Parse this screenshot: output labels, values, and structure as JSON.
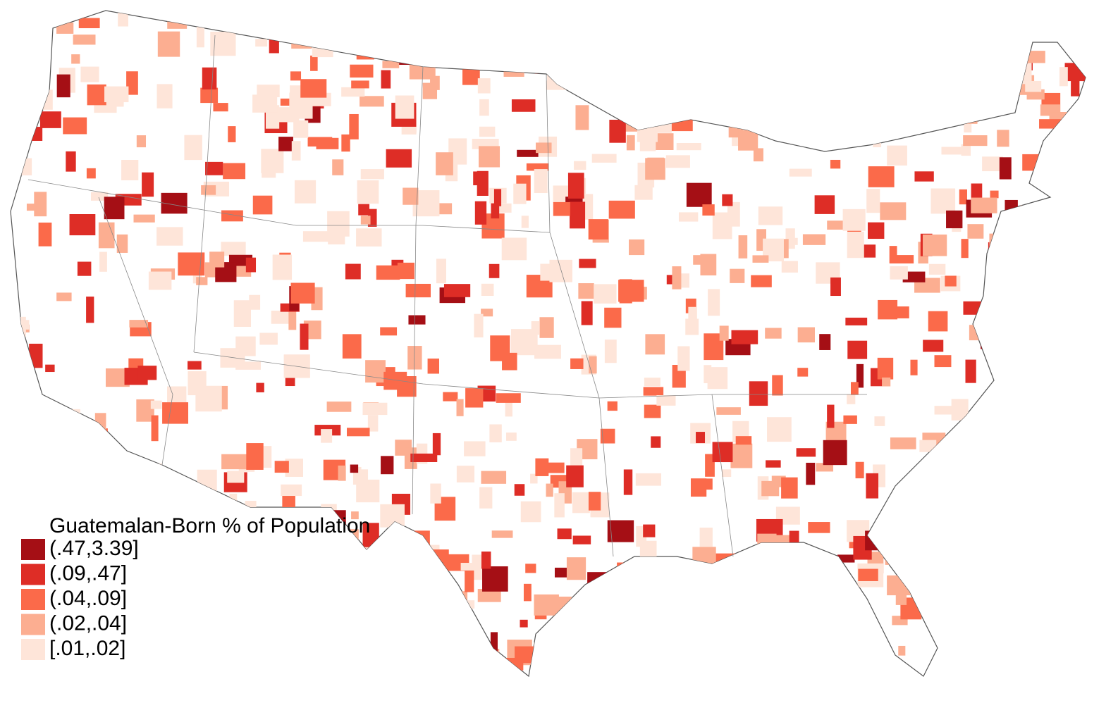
{
  "legend": {
    "title": "Guatemalan-Born % of Population",
    "items": [
      {
        "label": "(.47,3.39]",
        "color": "#a50f15"
      },
      {
        "label": "(.09,.47]",
        "color": "#de2d26"
      },
      {
        "label": "(.04,.09]",
        "color": "#fb6a4a"
      },
      {
        "label": "(.02,.04]",
        "color": "#fcae91"
      },
      {
        "label": "[.01,.02]",
        "color": "#fee5d9"
      }
    ]
  }
}
